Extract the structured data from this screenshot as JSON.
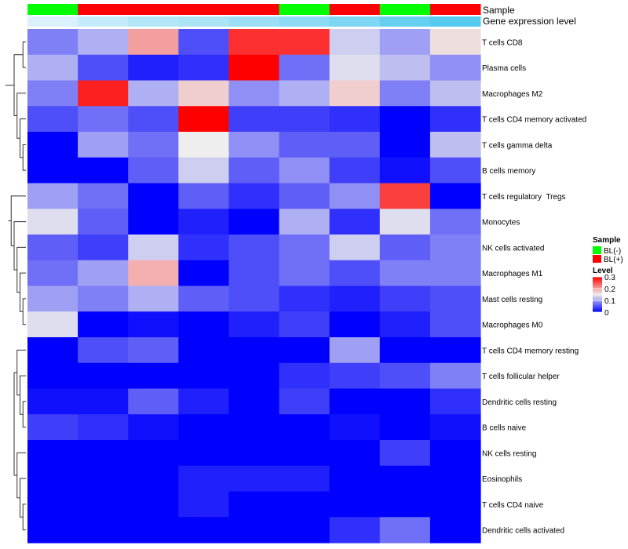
{
  "chart_data": {
    "type": "heatmap",
    "title": "",
    "annotation_titles": {
      "sample": "Sample",
      "expression": "Gene expression level"
    },
    "samples": [
      {
        "group": "BL(-)",
        "expression": 0.02
      },
      {
        "group": "BL(+)",
        "expression": 0.05
      },
      {
        "group": "BL(+)",
        "expression": 0.07
      },
      {
        "group": "BL(+)",
        "expression": 0.08
      },
      {
        "group": "BL(+)",
        "expression": 0.1
      },
      {
        "group": "BL(-)",
        "expression": 0.12
      },
      {
        "group": "BL(+)",
        "expression": 0.14
      },
      {
        "group": "BL(-)",
        "expression": 0.17
      },
      {
        "group": "BL(+)",
        "expression": 0.19
      }
    ],
    "rows": [
      "T cells CD8",
      "Plasma cells",
      "Macrophages M2",
      "T cells CD4 memory activated",
      "T cells gamma delta",
      "B cells memory",
      "T cells regulatory  Tregs",
      "Monocytes",
      "NK cells activated",
      "Macrophages M1",
      "Mast cells resting",
      "Macrophages M0",
      "T cells CD4 memory resting",
      "T cells follicular helper",
      "Dendritic cells resting",
      "B cells naive",
      "NK cells resting",
      "Eosinophils",
      "T cells CD4 naive",
      "Dendritic cells activated"
    ],
    "values": [
      [
        0.08,
        0.11,
        0.2,
        0.05,
        0.27,
        0.27,
        0.13,
        0.1,
        0.16
      ],
      [
        0.11,
        0.05,
        0.02,
        0.03,
        0.3,
        0.07,
        0.14,
        0.12,
        0.09
      ],
      [
        0.08,
        0.28,
        0.11,
        0.17,
        0.09,
        0.11,
        0.17,
        0.08,
        0.12
      ],
      [
        0.05,
        0.07,
        0.05,
        0.3,
        0.04,
        0.04,
        0.03,
        0.0,
        0.03
      ],
      [
        0.0,
        0.1,
        0.07,
        0.15,
        0.09,
        0.06,
        0.06,
        0.0,
        0.12
      ],
      [
        0.0,
        0.0,
        0.06,
        0.13,
        0.06,
        0.09,
        0.04,
        0.01,
        0.05
      ],
      [
        0.1,
        0.07,
        0.0,
        0.06,
        0.03,
        0.06,
        0.09,
        0.26,
        0.0
      ],
      [
        0.14,
        0.06,
        0.0,
        0.02,
        0.0,
        0.11,
        0.03,
        0.14,
        0.07
      ],
      [
        0.06,
        0.04,
        0.13,
        0.03,
        0.05,
        0.07,
        0.13,
        0.06,
        0.08
      ],
      [
        0.07,
        0.1,
        0.19,
        0.0,
        0.05,
        0.07,
        0.05,
        0.08,
        0.08
      ],
      [
        0.1,
        0.08,
        0.11,
        0.06,
        0.05,
        0.03,
        0.02,
        0.04,
        0.05
      ],
      [
        0.14,
        0.0,
        0.01,
        0.0,
        0.02,
        0.04,
        0.0,
        0.02,
        0.05
      ],
      [
        0.0,
        0.05,
        0.06,
        0.0,
        0.0,
        0.0,
        0.1,
        0.0,
        0.0
      ],
      [
        0.0,
        0.0,
        0.0,
        0.0,
        0.0,
        0.03,
        0.04,
        0.05,
        0.08
      ],
      [
        0.01,
        0.01,
        0.06,
        0.02,
        0.0,
        0.04,
        0.0,
        0.0,
        0.03
      ],
      [
        0.04,
        0.03,
        0.01,
        0.0,
        0.0,
        0.0,
        0.01,
        0.0,
        0.01
      ],
      [
        0.0,
        0.0,
        0.0,
        0.0,
        0.0,
        0.0,
        0.0,
        0.04,
        0.0
      ],
      [
        0.0,
        0.0,
        0.0,
        0.02,
        0.02,
        0.02,
        0.0,
        0.0,
        0.0
      ],
      [
        0.0,
        0.0,
        0.0,
        0.02,
        0.0,
        0.0,
        0.0,
        0.0,
        0.0
      ],
      [
        0.0,
        0.0,
        0.0,
        0.0,
        0.0,
        0.0,
        0.03,
        0.07,
        0.0
      ]
    ],
    "color_scale": {
      "low": "#0000FF",
      "mid": "#EEEEEE",
      "high": "#FF0000",
      "min": 0,
      "mid_value": 0.15,
      "max": 0.3
    },
    "legend": {
      "sample_title": "Sample",
      "sample_entries": [
        {
          "label": "BL(-)",
          "color": "#00FF00"
        },
        {
          "label": "BL(+)",
          "color": "#FF0000"
        }
      ],
      "level_title": "Level",
      "level_ticks": [
        {
          "label": "0.3",
          "value": 0.3
        },
        {
          "label": "0.2",
          "value": 0.2
        },
        {
          "label": "0.1",
          "value": 0.1
        },
        {
          "label": "0",
          "value": 0
        }
      ],
      "placement": "right"
    },
    "expression_colors": {
      "low": "#EAF6FC",
      "high": "#4EC8EE",
      "min": 0.0,
      "max": 0.2
    },
    "group_colors": {
      "BL(-)": "#00FF00",
      "BL(+)": "#FF0000"
    },
    "row_dendrogram": true
  }
}
